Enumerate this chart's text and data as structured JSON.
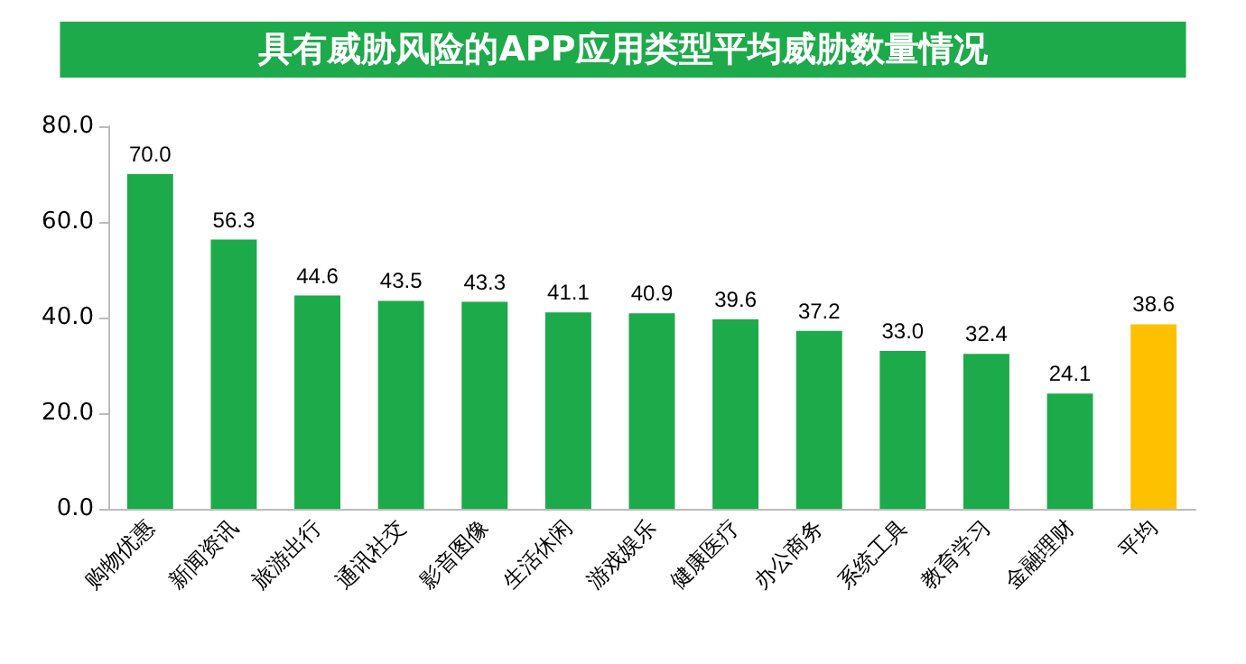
{
  "chart_data": {
    "type": "bar",
    "title": "具有威胁风险的APP应用类型平均威胁数量情况",
    "categories": [
      "购物优惠",
      "新闻资讯",
      "旅游出行",
      "通讯社交",
      "影音图像",
      "生活休闲",
      "游戏娱乐",
      "健康医疗",
      "办公商务",
      "系统工具",
      "教育学习",
      "金融理财",
      "平均"
    ],
    "values": [
      70.0,
      56.3,
      44.6,
      43.5,
      43.3,
      41.1,
      40.9,
      39.6,
      37.2,
      33.0,
      32.4,
      24.1,
      38.6
    ],
    "value_labels": [
      "70.0",
      "56.3",
      "44.6",
      "43.5",
      "43.3",
      "41.1",
      "40.9",
      "39.6",
      "37.2",
      "33.0",
      "32.4",
      "24.1",
      "38.6"
    ],
    "colors": [
      "#1daa4a",
      "#1daa4a",
      "#1daa4a",
      "#1daa4a",
      "#1daa4a",
      "#1daa4a",
      "#1daa4a",
      "#1daa4a",
      "#1daa4a",
      "#1daa4a",
      "#1daa4a",
      "#1daa4a",
      "#ffc000"
    ],
    "ylim": [
      0,
      80
    ],
    "yticks": [
      {
        "value": 0,
        "label": "0.0"
      },
      {
        "value": 20,
        "label": "20.0"
      },
      {
        "value": 40,
        "label": "40.0"
      },
      {
        "value": 60,
        "label": "60.0"
      },
      {
        "value": 80,
        "label": "80.0"
      }
    ],
    "grid": false
  }
}
